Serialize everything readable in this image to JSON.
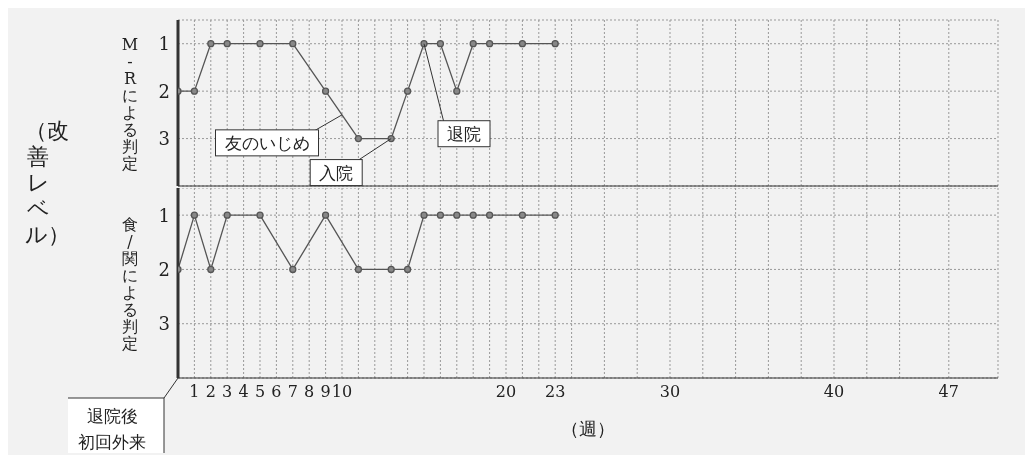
{
  "chart_data": [
    {
      "type": "line",
      "ylabel": "M-Rによる判定",
      "annotations": [
        "（改善レベル）",
        {
          "text": "友のいじめ",
          "x": 10,
          "y": 2.5
        },
        {
          "text": "入院",
          "x": 13,
          "y": 3
        },
        {
          "text": "退院",
          "x": 15,
          "y": 1
        }
      ],
      "x": [
        0,
        1,
        2,
        3,
        5,
        7,
        9,
        11,
        13,
        14,
        15,
        16,
        17,
        18,
        19,
        21,
        23
      ],
      "series": [
        {
          "color": "#555555",
          "values": [
            2,
            2,
            1,
            1,
            1,
            1,
            2,
            3,
            3,
            2,
            1,
            1,
            2,
            1,
            1,
            1,
            1
          ]
        }
      ],
      "xlim": [
        0,
        50
      ],
      "ylim": [
        4,
        0.5
      ],
      "yticks": [
        1,
        2,
        3
      ],
      "xticks": [
        1,
        2,
        3,
        4,
        5,
        6,
        7,
        8,
        9,
        10,
        {
          "value": 11,
          "label": null
        },
        {
          "value": 12,
          "label": null
        },
        {
          "value": 13,
          "label": null
        },
        {
          "value": 14,
          "label": null
        },
        {
          "value": 15,
          "label": null
        },
        {
          "value": 16,
          "label": null
        },
        {
          "value": 17,
          "label": null
        },
        {
          "value": 18,
          "label": null
        },
        {
          "value": 19,
          "label": null
        },
        20,
        {
          "value": 21,
          "label": null
        },
        {
          "value": 22,
          "label": null
        },
        23,
        {
          "value": 24,
          "label": null
        },
        {
          "value": 26,
          "label": null
        },
        {
          "value": 28,
          "label": null
        },
        30,
        {
          "value": 32,
          "label": null
        },
        {
          "value": 34,
          "label": null
        },
        {
          "value": 36,
          "label": null
        },
        {
          "value": 38,
          "label": null
        },
        40,
        {
          "value": 42,
          "label": null
        },
        {
          "value": 44,
          "label": null
        },
        47
      ],
      "tick_labels": "y",
      "grid": true,
      "marker": "circle",
      "line_style": "solid",
      "legend": false
    },
    {
      "type": "line",
      "ylabel": "食/関による判定",
      "xlabel": "（週）",
      "annotations": [
        "退院後初回外来"
      ],
      "x": [
        0,
        1,
        2,
        3,
        5,
        7,
        9,
        11,
        13,
        14,
        15,
        16,
        17,
        18,
        19,
        21,
        23
      ],
      "series": [
        {
          "color": "#555555",
          "values": [
            2,
            1,
            2,
            1,
            1,
            2,
            1,
            2,
            2,
            2,
            1,
            1,
            1,
            1,
            1,
            1,
            1
          ]
        }
      ],
      "xlim": [
        0,
        50
      ],
      "ylim": [
        4,
        0.5
      ],
      "yticks": [
        1,
        2,
        3
      ],
      "xticks": [
        1,
        2,
        3,
        4,
        5,
        6,
        7,
        8,
        9,
        10,
        {
          "value": 11,
          "label": null
        },
        {
          "value": 12,
          "label": null
        },
        {
          "value": 13,
          "label": null
        },
        {
          "value": 14,
          "label": null
        },
        {
          "value": 15,
          "label": null
        },
        {
          "value": 16,
          "label": null
        },
        {
          "value": 17,
          "label": null
        },
        {
          "value": 18,
          "label": null
        },
        {
          "value": 19,
          "label": null
        },
        20,
        {
          "value": 21,
          "label": null
        },
        {
          "value": 22,
          "label": null
        },
        23,
        {
          "value": 24,
          "label": null
        },
        {
          "value": 26,
          "label": null
        },
        {
          "value": 28,
          "label": null
        },
        30,
        {
          "value": 32,
          "label": null
        },
        {
          "value": 34,
          "label": null
        },
        {
          "value": 36,
          "label": null
        },
        {
          "value": 38,
          "label": null
        },
        40,
        {
          "value": 42,
          "label": null
        },
        {
          "value": 44,
          "label": null
        },
        47
      ],
      "grid": true,
      "marker": "circle",
      "line_style": "solid",
      "legend": false
    }
  ]
}
